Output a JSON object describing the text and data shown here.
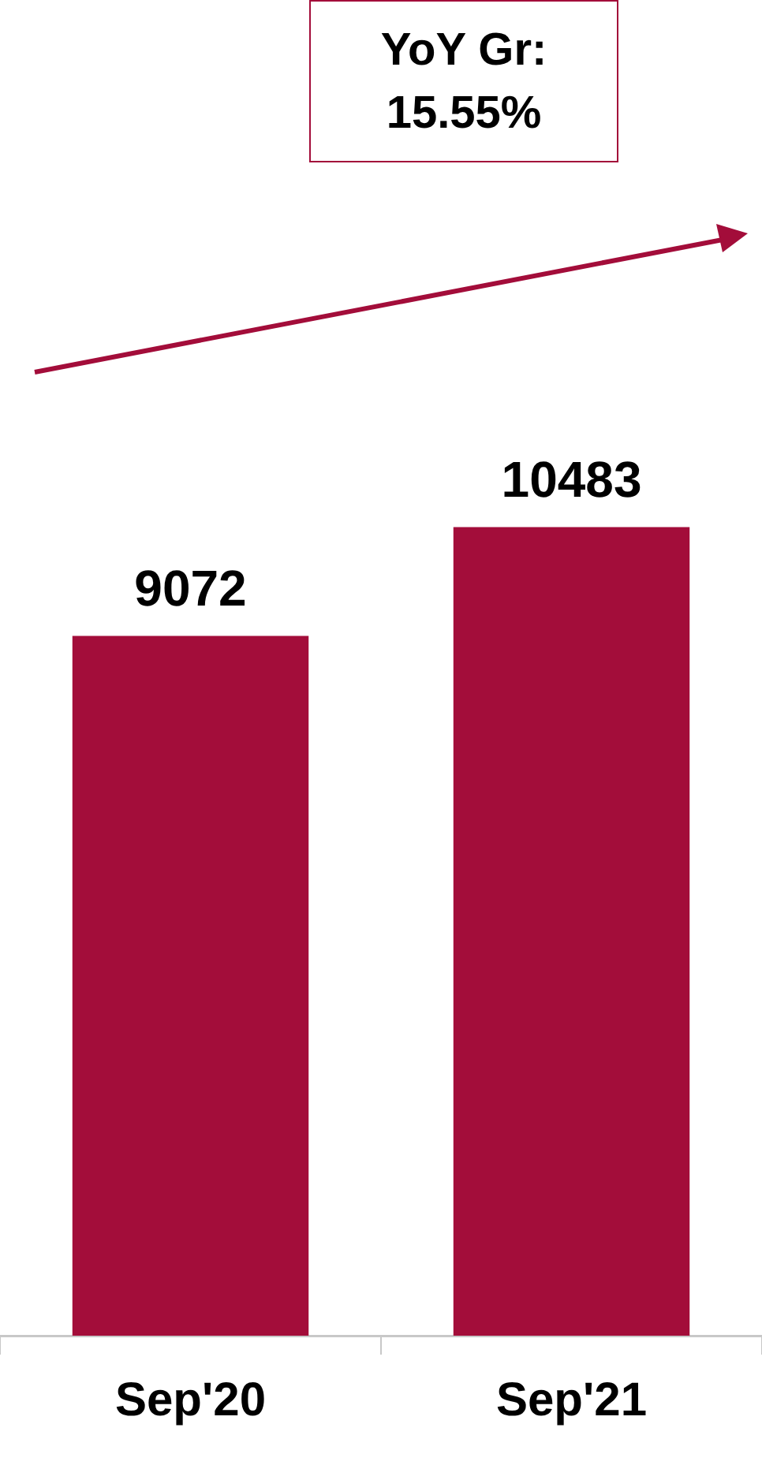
{
  "chart_data": {
    "type": "bar",
    "categories": [
      "Sep'20",
      "Sep'21"
    ],
    "values": [
      9072,
      10483
    ],
    "color": "#a30d3a",
    "data_labels": true,
    "annotations": [
      "YoY Gr: 15.55%"
    ]
  }
}
